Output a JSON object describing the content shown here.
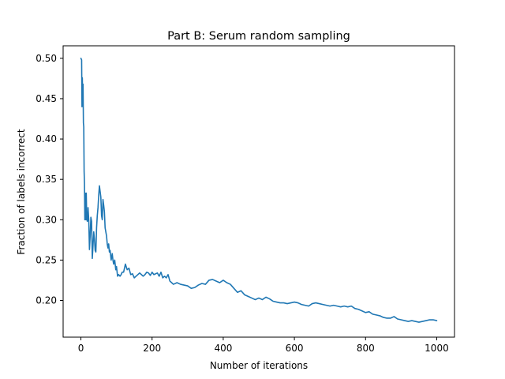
{
  "chart_data": {
    "type": "line",
    "title": "Part B: Serum random sampling",
    "xlabel": "Number of iterations",
    "ylabel": "Fraction of labels incorrect",
    "xlim": [
      -50,
      1050
    ],
    "ylim": [
      0.1545,
      0.5155
    ],
    "xticks": [
      0,
      200,
      400,
      600,
      800,
      1000
    ],
    "yticks": [
      0.2,
      0.25,
      0.3,
      0.35,
      0.4,
      0.45,
      0.5
    ],
    "xtick_labels": [
      "0",
      "200",
      "400",
      "600",
      "800",
      "1000"
    ],
    "ytick_labels": [
      "0.20",
      "0.25",
      "0.30",
      "0.35",
      "0.40",
      "0.45",
      "0.50"
    ],
    "grid": false,
    "legend": "none",
    "series": [
      {
        "color": "#1f77b4",
        "x": [
          0,
          2,
          3,
          4,
          5,
          6,
          7,
          8,
          9,
          10,
          11,
          12,
          13,
          14,
          15,
          16,
          17,
          18,
          19,
          20,
          22,
          24,
          26,
          28,
          30,
          32,
          34,
          36,
          38,
          40,
          42,
          44,
          46,
          48,
          50,
          52,
          54,
          56,
          58,
          60,
          62,
          64,
          66,
          68,
          70,
          72,
          74,
          76,
          78,
          80,
          82,
          85,
          88,
          90,
          92,
          95,
          98,
          100,
          103,
          106,
          110,
          113,
          116,
          120,
          125,
          130,
          135,
          140,
          145,
          150,
          155,
          160,
          165,
          170,
          175,
          180,
          185,
          190,
          195,
          200,
          205,
          210,
          215,
          220,
          225,
          230,
          235,
          240,
          245,
          250,
          255,
          260,
          270,
          280,
          290,
          300,
          310,
          320,
          330,
          340,
          350,
          360,
          370,
          380,
          390,
          400,
          410,
          420,
          430,
          440,
          450,
          460,
          470,
          480,
          490,
          500,
          510,
          520,
          530,
          540,
          550,
          560,
          570,
          580,
          590,
          600,
          610,
          620,
          630,
          640,
          650,
          660,
          670,
          680,
          690,
          700,
          710,
          720,
          730,
          740,
          750,
          760,
          770,
          780,
          790,
          800,
          810,
          820,
          830,
          840,
          850,
          860,
          870,
          880,
          890,
          900,
          910,
          920,
          930,
          940,
          950,
          960,
          970,
          980,
          990,
          1000
        ],
        "y": [
          0.5,
          0.498,
          0.44,
          0.476,
          0.445,
          0.468,
          0.42,
          0.415,
          0.36,
          0.345,
          0.3,
          0.333,
          0.31,
          0.3,
          0.333,
          0.31,
          0.3,
          0.298,
          0.3,
          0.315,
          0.3,
          0.263,
          0.28,
          0.303,
          0.298,
          0.252,
          0.268,
          0.285,
          0.276,
          0.262,
          0.26,
          0.29,
          0.305,
          0.315,
          0.33,
          0.342,
          0.335,
          0.328,
          0.305,
          0.3,
          0.325,
          0.318,
          0.31,
          0.29,
          0.285,
          0.28,
          0.27,
          0.265,
          0.27,
          0.26,
          0.262,
          0.25,
          0.258,
          0.25,
          0.245,
          0.25,
          0.238,
          0.242,
          0.23,
          0.232,
          0.23,
          0.232,
          0.235,
          0.235,
          0.245,
          0.238,
          0.24,
          0.232,
          0.233,
          0.228,
          0.23,
          0.232,
          0.234,
          0.232,
          0.23,
          0.232,
          0.235,
          0.234,
          0.231,
          0.235,
          0.232,
          0.233,
          0.234,
          0.23,
          0.235,
          0.228,
          0.23,
          0.228,
          0.232,
          0.224,
          0.222,
          0.22,
          0.222,
          0.22,
          0.219,
          0.218,
          0.215,
          0.216,
          0.219,
          0.221,
          0.22,
          0.225,
          0.226,
          0.224,
          0.222,
          0.225,
          0.222,
          0.22,
          0.215,
          0.21,
          0.212,
          0.207,
          0.205,
          0.203,
          0.201,
          0.203,
          0.201,
          0.204,
          0.202,
          0.199,
          0.198,
          0.197,
          0.197,
          0.196,
          0.197,
          0.198,
          0.197,
          0.195,
          0.194,
          0.193,
          0.196,
          0.197,
          0.196,
          0.195,
          0.194,
          0.193,
          0.194,
          0.193,
          0.192,
          0.193,
          0.192,
          0.193,
          0.19,
          0.189,
          0.187,
          0.185,
          0.186,
          0.183,
          0.182,
          0.181,
          0.179,
          0.178,
          0.178,
          0.18,
          0.177,
          0.176,
          0.175,
          0.174,
          0.175,
          0.174,
          0.173,
          0.174,
          0.175,
          0.176,
          0.176,
          0.175
        ]
      }
    ]
  }
}
